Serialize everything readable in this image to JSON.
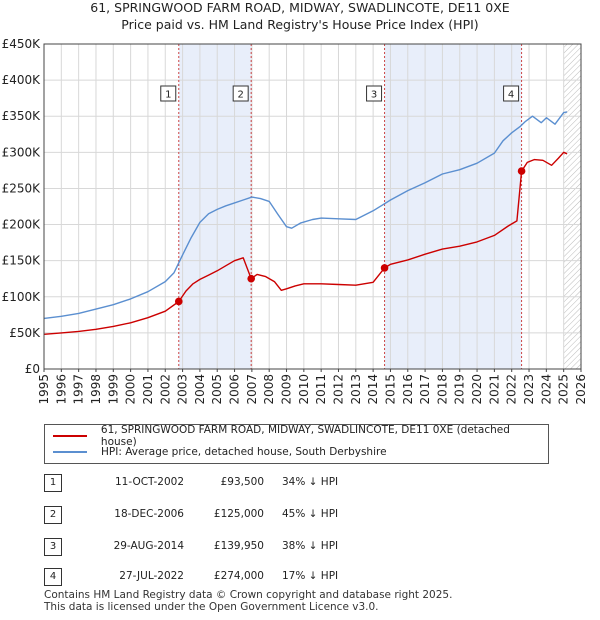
{
  "header": {
    "title_line1": "61, SPRINGWOOD FARM ROAD, MIDWAY, SWADLINCOTE, DE11 0XE",
    "title_line2": "Price paid vs. HM Land Registry's House Price Index (HPI)"
  },
  "colors": {
    "price_line": "#cc0000",
    "hpi_line": "#5b8fd0",
    "shade": "#e8eefa",
    "marker_line": "#cc4444",
    "grid": "#d8d8d8"
  },
  "chart_data": {
    "type": "line",
    "xlim": [
      1995,
      2026
    ],
    "ylim": [
      0,
      450000
    ],
    "x_ticks": [
      "1995",
      "1996",
      "1997",
      "1998",
      "1999",
      "2000",
      "2001",
      "2002",
      "2003",
      "2004",
      "2005",
      "2006",
      "2007",
      "2008",
      "2009",
      "2010",
      "2011",
      "2012",
      "2013",
      "2014",
      "2015",
      "2016",
      "2017",
      "2018",
      "2019",
      "2020",
      "2021",
      "2022",
      "2023",
      "2024",
      "2025",
      "2026"
    ],
    "y_ticks": [
      {
        "value": 0,
        "label": "£0"
      },
      {
        "value": 50000,
        "label": "£50K"
      },
      {
        "value": 100000,
        "label": "£100K"
      },
      {
        "value": 150000,
        "label": "£150K"
      },
      {
        "value": 200000,
        "label": "£200K"
      },
      {
        "value": 250000,
        "label": "£250K"
      },
      {
        "value": 300000,
        "label": "£300K"
      },
      {
        "value": 350000,
        "label": "£350K"
      },
      {
        "value": 400000,
        "label": "£400K"
      },
      {
        "value": 450000,
        "label": "£450K"
      }
    ],
    "shaded_ranges": [
      [
        2002.78,
        2006.96
      ],
      [
        2014.66,
        2022.57
      ]
    ],
    "hatch_from": 2025.0,
    "series": [
      {
        "name": "61, SPRINGWOOD FARM ROAD, MIDWAY, SWADLINCOTE, DE11 0XE (detached house)",
        "x": [
          1995.0,
          1996.0,
          1997.0,
          1998.0,
          1999.0,
          2000.0,
          2001.0,
          2002.0,
          2002.78,
          2003.2,
          2003.6,
          2004.0,
          2004.5,
          2005.0,
          2005.5,
          2006.0,
          2006.5,
          2006.96,
          2007.3,
          2007.8,
          2008.3,
          2008.7,
          2009.0,
          2009.5,
          2010.0,
          2011.0,
          2012.0,
          2013.0,
          2014.0,
          2014.66,
          2015.0,
          2016.0,
          2017.0,
          2018.0,
          2019.0,
          2020.0,
          2021.0,
          2021.8,
          2022.3,
          2022.57,
          2022.9,
          2023.3,
          2023.8,
          2024.3,
          2024.7,
          2025.0,
          2025.2
        ],
        "y": [
          48000,
          50000,
          52000,
          55000,
          59000,
          64000,
          71000,
          80000,
          93500,
          108000,
          118000,
          124000,
          130000,
          136000,
          143000,
          150000,
          154000,
          125000,
          131000,
          128000,
          121000,
          109000,
          111000,
          115000,
          118000,
          118000,
          117000,
          116000,
          120000,
          139950,
          145000,
          151000,
          159000,
          166000,
          170000,
          176000,
          185000,
          198000,
          205000,
          274000,
          286000,
          290000,
          289000,
          282000,
          292000,
          300000,
          298000
        ]
      },
      {
        "name": "HPI: Average price, detached house, South Derbyshire",
        "x": [
          1995.0,
          1996.0,
          1997.0,
          1998.0,
          1999.0,
          2000.0,
          2001.0,
          2002.0,
          2002.5,
          2003.0,
          2003.5,
          2004.0,
          2004.5,
          2005.0,
          2005.5,
          2006.0,
          2006.5,
          2007.0,
          2007.5,
          2008.0,
          2008.5,
          2009.0,
          2009.3,
          2009.8,
          2010.5,
          2011.0,
          2012.0,
          2013.0,
          2014.0,
          2015.0,
          2016.0,
          2017.0,
          2018.0,
          2019.0,
          2020.0,
          2021.0,
          2021.5,
          2022.0,
          2022.5,
          2022.8,
          2023.2,
          2023.7,
          2024.0,
          2024.5,
          2025.0,
          2025.2
        ],
        "y": [
          70000,
          73000,
          77000,
          83000,
          89000,
          97000,
          107000,
          121000,
          133000,
          158000,
          182000,
          203000,
          215000,
          221000,
          226000,
          230000,
          234000,
          238000,
          236000,
          232000,
          214000,
          197000,
          195000,
          202000,
          207000,
          209000,
          208000,
          207000,
          219000,
          234000,
          247000,
          258000,
          270000,
          276000,
          285000,
          299000,
          316000,
          327000,
          336000,
          343000,
          350000,
          341000,
          348000,
          339000,
          355000,
          356000
        ]
      }
    ],
    "sales": [
      {
        "label": "1",
        "x": 2002.78,
        "y": 93500
      },
      {
        "label": "2",
        "x": 2006.96,
        "y": 125000
      },
      {
        "label": "3",
        "x": 2014.66,
        "y": 139950
      },
      {
        "label": "4",
        "x": 2022.57,
        "y": 274000
      }
    ]
  },
  "legend": {
    "entries": [
      "61, SPRINGWOOD FARM ROAD, MIDWAY, SWADLINCOTE, DE11 0XE (detached house)",
      "HPI: Average price, detached house, South Derbyshire"
    ]
  },
  "transactions": [
    {
      "num": "1",
      "date": "11-OCT-2002",
      "price": "£93,500",
      "pct": "34% ↓ HPI"
    },
    {
      "num": "2",
      "date": "18-DEC-2006",
      "price": "£125,000",
      "pct": "45% ↓ HPI"
    },
    {
      "num": "3",
      "date": "29-AUG-2014",
      "price": "£139,950",
      "pct": "38% ↓ HPI"
    },
    {
      "num": "4",
      "date": "27-JUL-2022",
      "price": "£274,000",
      "pct": "17% ↓ HPI"
    }
  ],
  "footer": {
    "line1": "Contains HM Land Registry data © Crown copyright and database right 2025.",
    "line2": "This data is licensed under the Open Government Licence v3.0."
  }
}
